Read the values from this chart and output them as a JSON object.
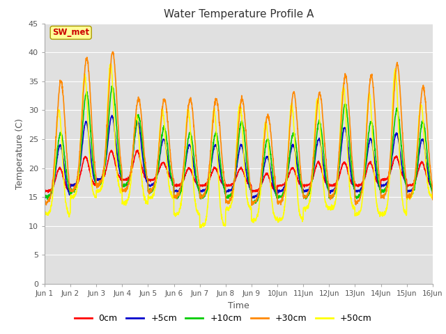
{
  "title": "Water Temperature Profile A",
  "xlabel": "Time",
  "ylabel": "Temperature (C)",
  "ylim": [
    0,
    45
  ],
  "yticks": [
    0,
    5,
    10,
    15,
    20,
    25,
    30,
    35,
    40,
    45
  ],
  "lines": [
    {
      "label": "0cm",
      "color": "#ff0000",
      "lw": 1.2
    },
    {
      "label": "+5cm",
      "color": "#0000cc",
      "lw": 1.2
    },
    {
      "label": "+10cm",
      "color": "#00cc00",
      "lw": 1.2
    },
    {
      "label": "+30cm",
      "color": "#ff8800",
      "lw": 1.2
    },
    {
      "label": "+50cm",
      "color": "#ffff00",
      "lw": 1.2
    }
  ],
  "annotation_text": "SW_met",
  "annotation_color": "#cc0000",
  "annotation_bg": "#ffff99",
  "tick_label_color": "#555555",
  "title_color": "#333333",
  "legend_fontsize": 9,
  "axis_label_fontsize": 9,
  "title_fontsize": 11,
  "fig_width": 6.4,
  "fig_height": 4.8,
  "dpi": 100
}
